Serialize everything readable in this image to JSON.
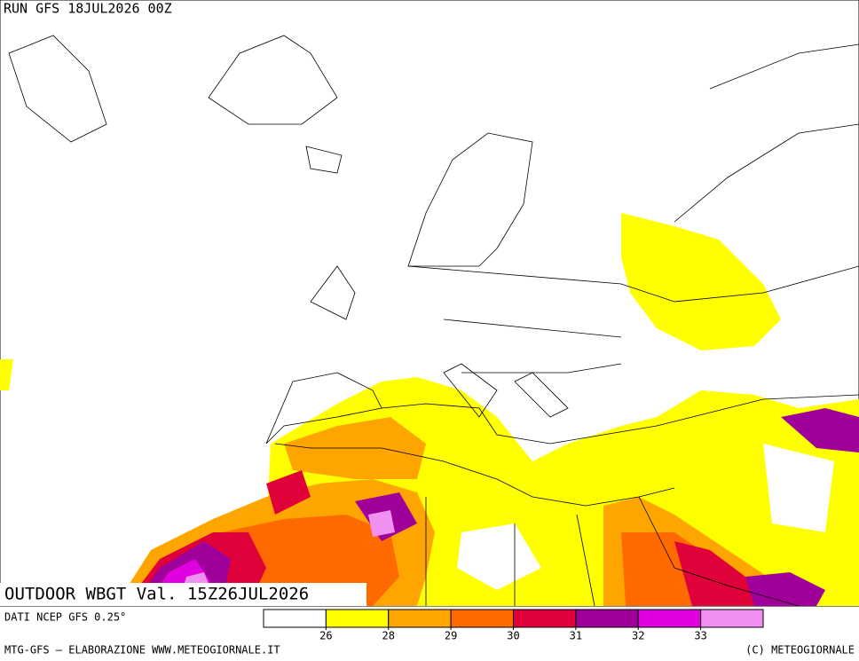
{
  "header": {
    "run": "RUN GFS 18JUL2026 00Z"
  },
  "map": {
    "title": "OUTDOOR WBGT Val. 15Z26JUL2026"
  },
  "legend": {
    "colors": [
      "#ffffff",
      "#ffff00",
      "#ffa500",
      "#ff6a00",
      "#e0003a",
      "#a0009a",
      "#e000e0",
      "#f090f0"
    ],
    "ticks": [
      26,
      28,
      29,
      30,
      31,
      32,
      33
    ]
  },
  "footer": {
    "source": "DATI NCEP GFS 0.25°",
    "credit": "MTG-GFS – ELABORAZIONE WWW.METEOGIORNALE.IT",
    "copyright": "(C) METEOGIORNALE"
  }
}
